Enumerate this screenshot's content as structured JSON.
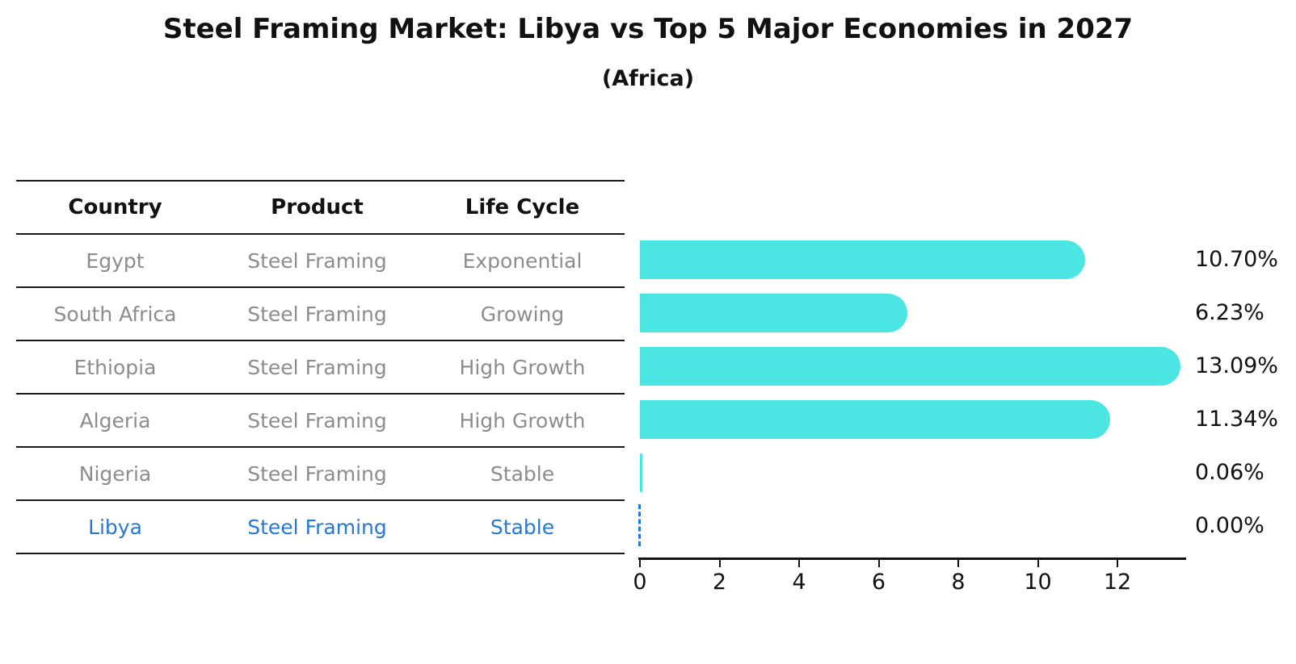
{
  "chart": {
    "title": "Steel Framing Market: Libya vs Top 5 Major Economies in 2027",
    "subtitle": "(Africa)"
  },
  "table": {
    "headers": [
      "Country",
      "Product",
      "Life Cycle"
    ],
    "rows": [
      {
        "country": "Egypt",
        "product": "Steel Framing",
        "life_cycle": "Exponential",
        "value_label": "10.70%"
      },
      {
        "country": "South Africa",
        "product": "Steel Framing",
        "life_cycle": "Growing",
        "value_label": "6.23%"
      },
      {
        "country": "Ethiopia",
        "product": "Steel Framing",
        "life_cycle": "High Growth",
        "value_label": "13.09%"
      },
      {
        "country": "Algeria",
        "product": "Steel Framing",
        "life_cycle": "High Growth",
        "value_label": "11.34%"
      },
      {
        "country": "Nigeria",
        "product": "Steel Framing",
        "life_cycle": "Stable",
        "value_label": "0.06%"
      },
      {
        "country": "Libya",
        "product": "Steel Framing",
        "life_cycle": "Stable",
        "value_label": "0.00%"
      }
    ],
    "highlight_country": "Libya",
    "highlight_color": "#2878d2"
  },
  "chart_data": {
    "type": "bar",
    "orientation": "horizontal",
    "title": "Steel Framing Market: Libya vs Top 5 Major Economies in 2027 (Africa)",
    "categories": [
      "Egypt",
      "South Africa",
      "Ethiopia",
      "Algeria",
      "Nigeria",
      "Libya"
    ],
    "values": [
      10.7,
      6.23,
      13.09,
      11.34,
      0.06,
      0.0
    ],
    "value_labels": [
      "10.70%",
      "6.23%",
      "13.09%",
      "11.34%",
      "0.06%",
      "0.00%"
    ],
    "unit": "percent",
    "xticks": [
      0,
      2,
      4,
      6,
      8,
      10,
      12
    ],
    "xlim": [
      0,
      13.75
    ],
    "grid": false,
    "legend": "none",
    "value_label_position": "right",
    "bar_color": "#4be5e3",
    "axis_color": "#111111",
    "highlight": {
      "category": "Libya",
      "style": "dashed-zero-line",
      "color": "#2878d2"
    }
  }
}
